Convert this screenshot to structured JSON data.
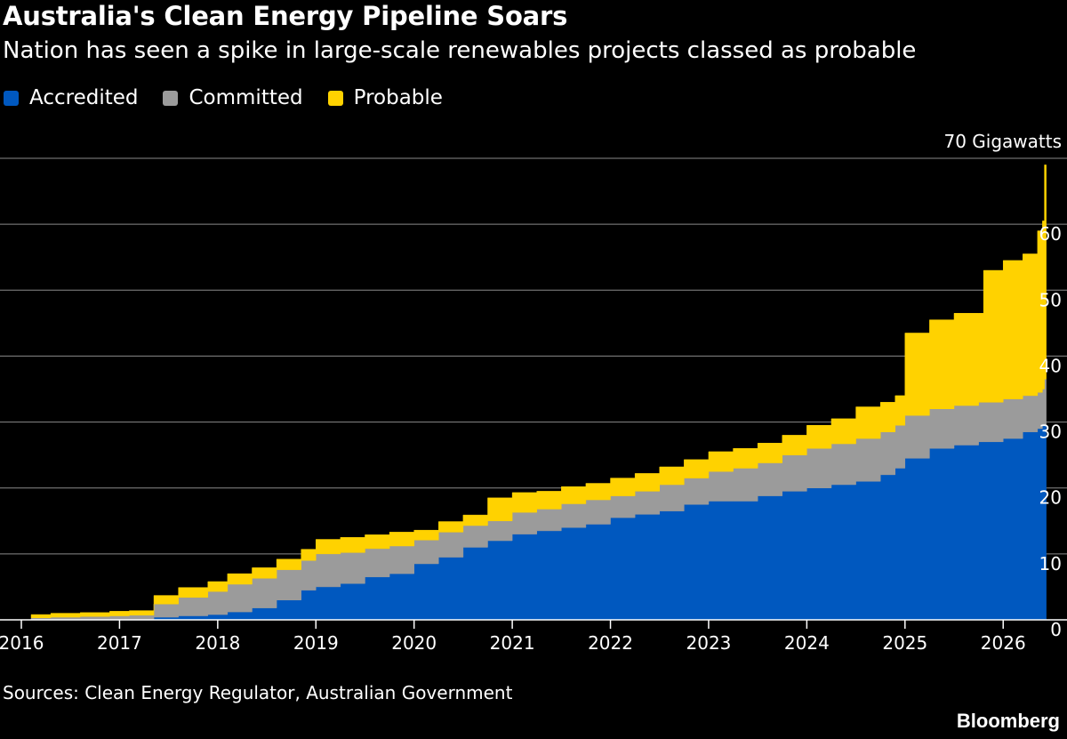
{
  "header": {
    "title": "Australia's Clean Energy Pipeline Soars",
    "subtitle": "Nation has seen a spike in large-scale renewables projects classed as probable"
  },
  "footer": {
    "source": "Sources: Clean Energy Regulator, Australian Government",
    "brand": "Bloomberg"
  },
  "colors": {
    "background": "#000000",
    "accredited": "#0058bf",
    "committed": "#9b9b9b",
    "probable": "#ffd200",
    "grid": "#8a8a8a"
  },
  "chart_data": {
    "type": "area",
    "stacked": true,
    "unit_label": "70 Gigawatts",
    "ylim": [
      0,
      70
    ],
    "xlim": [
      2016,
      2026.65
    ],
    "yticks": [
      {
        "value": 0,
        "label": "0"
      },
      {
        "value": 10,
        "label": "10"
      },
      {
        "value": 20,
        "label": "20"
      },
      {
        "value": 30,
        "label": "30"
      },
      {
        "value": 40,
        "label": "40"
      },
      {
        "value": 50,
        "label": "50"
      },
      {
        "value": 60,
        "label": "60"
      },
      {
        "value": 70,
        "label": "70 Gigawatts"
      }
    ],
    "xticks": [
      "2016",
      "2017",
      "2018",
      "2019",
      "2020",
      "2021",
      "2022",
      "2023",
      "2024",
      "2025",
      "2026"
    ],
    "grid": true,
    "legend_position": "top-left",
    "x": [
      2016.1,
      2016.3,
      2016.6,
      2016.9,
      2017.1,
      2017.35,
      2017.6,
      2017.9,
      2018.1,
      2018.35,
      2018.6,
      2018.85,
      2019.0,
      2019.25,
      2019.5,
      2019.75,
      2020.0,
      2020.25,
      2020.5,
      2020.75,
      2021.0,
      2021.25,
      2021.5,
      2021.75,
      2022.0,
      2022.25,
      2022.5,
      2022.75,
      2023.0,
      2023.25,
      2023.5,
      2023.75,
      2024.0,
      2024.25,
      2024.5,
      2024.75,
      2024.9,
      2025.0,
      2025.25,
      2025.5,
      2025.75,
      2025.8,
      2026.0,
      2026.2,
      2026.35,
      2026.4,
      2026.42
    ],
    "series": [
      {
        "name": "Accredited",
        "values": [
          0.1,
          0.1,
          0.1,
          0.1,
          0.1,
          0.4,
          0.6,
          0.8,
          1.2,
          1.8,
          3.0,
          4.5,
          5.0,
          5.5,
          6.5,
          7.0,
          8.5,
          9.5,
          11.0,
          12.0,
          13.0,
          13.5,
          14.0,
          14.5,
          15.5,
          16.0,
          16.5,
          17.5,
          18.0,
          18.0,
          18.8,
          19.5,
          20.0,
          20.5,
          21.0,
          22.0,
          23.0,
          24.5,
          26.0,
          26.5,
          27.0,
          27.0,
          27.5,
          28.5,
          29.0,
          29.5,
          29.5
        ]
      },
      {
        "name": "Committed",
        "values": [
          0.2,
          0.3,
          0.4,
          0.5,
          0.6,
          2.0,
          2.8,
          3.5,
          4.2,
          4.5,
          4.6,
          4.5,
          5.0,
          4.7,
          4.3,
          4.2,
          3.6,
          3.8,
          3.3,
          3.0,
          3.3,
          3.3,
          3.6,
          3.7,
          3.3,
          3.5,
          4.0,
          4.0,
          4.5,
          5.0,
          5.0,
          5.5,
          6.0,
          6.2,
          6.5,
          6.5,
          6.5,
          6.5,
          6.0,
          6.0,
          6.0,
          6.0,
          6.0,
          5.5,
          5.5,
          5.5,
          7.0
        ]
      },
      {
        "name": "Probable",
        "values": [
          0.5,
          0.6,
          0.6,
          0.7,
          0.7,
          1.3,
          1.5,
          1.5,
          1.6,
          1.6,
          1.6,
          1.7,
          2.2,
          2.3,
          2.1,
          2.1,
          1.5,
          1.6,
          1.6,
          3.5,
          3.0,
          2.7,
          2.6,
          2.5,
          2.7,
          2.7,
          2.7,
          2.8,
          3.0,
          3.0,
          3.0,
          3.0,
          3.5,
          3.8,
          4.8,
          4.5,
          4.5,
          12.5,
          13.5,
          14.0,
          13.5,
          20.0,
          21.0,
          21.5,
          24.5,
          25.5,
          32.5
        ]
      }
    ]
  }
}
